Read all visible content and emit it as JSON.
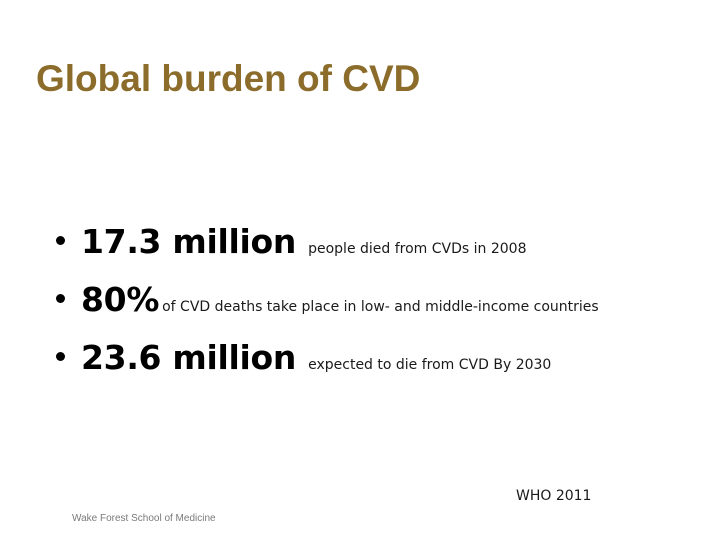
{
  "slide": {
    "title": "Global burden of CVD",
    "bullets": [
      {
        "stat": "17.3 million",
        "text": "people died from CVDs in 2008"
      },
      {
        "stat": "80%",
        "text": "of CVD deaths take place in low- and middle-income countries"
      },
      {
        "stat": "23.6 million",
        "text": "expected to die from CVD By 2030"
      }
    ],
    "citation": "WHO 2011",
    "footer": "Wake Forest School of Medicine"
  },
  "colors": {
    "title": "#8b6c2a",
    "text": "#000000",
    "footer": "#7a7a7a",
    "background": "#ffffff"
  }
}
